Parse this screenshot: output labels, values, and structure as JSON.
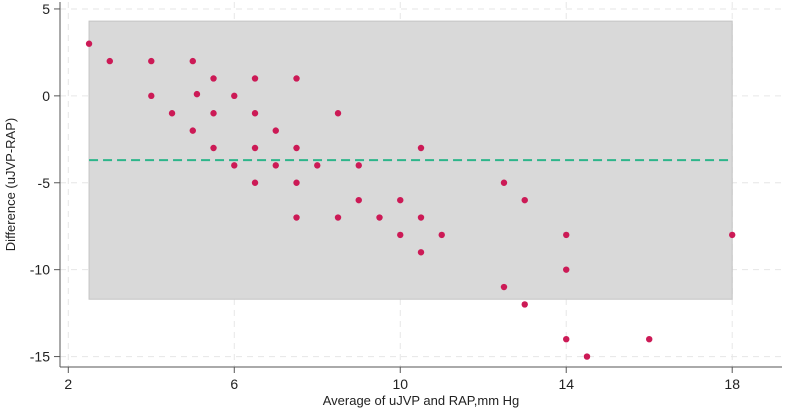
{
  "chart_data": {
    "type": "scatter",
    "title": "",
    "xlabel": "Average of uJVP and RAP,mm Hg",
    "ylabel": "Difference (uJVP-RAP)",
    "xlim": [
      1.8,
      19.2
    ],
    "ylim": [
      -15.6,
      5.4
    ],
    "xticks": [
      2,
      6,
      10,
      14,
      18
    ],
    "yticks": [
      5,
      0,
      -5,
      -10,
      -15
    ],
    "xtick_labels": [
      "2",
      "6",
      "10",
      "14",
      "18"
    ],
    "ytick_labels": [
      "5",
      "0",
      "-5",
      "-10",
      "-15"
    ],
    "grid": true,
    "mean_difference": -3.7,
    "limits_of_agreement": {
      "upper": 4.3,
      "lower": -11.7
    },
    "points": [
      {
        "x": 2.5,
        "y": 3
      },
      {
        "x": 3,
        "y": 2
      },
      {
        "x": 4,
        "y": 2
      },
      {
        "x": 5,
        "y": 2
      },
      {
        "x": 4,
        "y": 0
      },
      {
        "x": 5.1,
        "y": 0.1
      },
      {
        "x": 5.5,
        "y": 1
      },
      {
        "x": 6.5,
        "y": 1
      },
      {
        "x": 7.5,
        "y": 1
      },
      {
        "x": 6,
        "y": 0
      },
      {
        "x": 4.5,
        "y": -1
      },
      {
        "x": 5.5,
        "y": -1
      },
      {
        "x": 6.5,
        "y": -1
      },
      {
        "x": 8.5,
        "y": -1
      },
      {
        "x": 5,
        "y": -2
      },
      {
        "x": 7,
        "y": -2
      },
      {
        "x": 5.5,
        "y": -3
      },
      {
        "x": 6.5,
        "y": -3
      },
      {
        "x": 7.5,
        "y": -3
      },
      {
        "x": 10.5,
        "y": -3
      },
      {
        "x": 6,
        "y": -4
      },
      {
        "x": 7,
        "y": -4
      },
      {
        "x": 8,
        "y": -4
      },
      {
        "x": 9,
        "y": -4
      },
      {
        "x": 6.5,
        "y": -5
      },
      {
        "x": 7.5,
        "y": -5
      },
      {
        "x": 12.5,
        "y": -5
      },
      {
        "x": 9,
        "y": -6
      },
      {
        "x": 10,
        "y": -6
      },
      {
        "x": 13,
        "y": -6
      },
      {
        "x": 7.5,
        "y": -7
      },
      {
        "x": 8.5,
        "y": -7
      },
      {
        "x": 9.5,
        "y": -7
      },
      {
        "x": 10.5,
        "y": -7
      },
      {
        "x": 10,
        "y": -8
      },
      {
        "x": 11,
        "y": -8
      },
      {
        "x": 14,
        "y": -8
      },
      {
        "x": 18,
        "y": -8
      },
      {
        "x": 10.5,
        "y": -9
      },
      {
        "x": 14,
        "y": -10
      },
      {
        "x": 12.5,
        "y": -11
      },
      {
        "x": 13,
        "y": -12
      },
      {
        "x": 14,
        "y": -14
      },
      {
        "x": 16,
        "y": -14
      },
      {
        "x": 14.5,
        "y": -15
      }
    ],
    "colors": {
      "points": "#cc1a56",
      "mean_line": "#2db58a",
      "band": "#d9d9d9",
      "band_border": "#c4c4c4",
      "grid": "#e6e6e6",
      "axis": "#555555"
    }
  }
}
